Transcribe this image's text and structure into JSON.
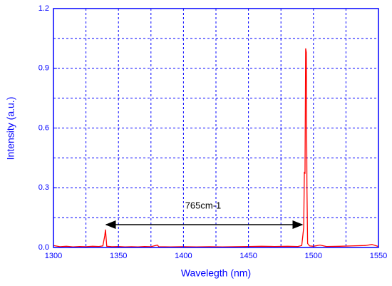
{
  "chart_data": {
    "type": "line",
    "xlabel": "Wavelegth (nm)",
    "ylabel": "Intensity (a.u.)",
    "annotation": "765cm-1",
    "xlim": [
      1300,
      1550
    ],
    "ylim": [
      0,
      1.2
    ],
    "xticks": [
      1300,
      1350,
      1400,
      1450,
      1500,
      1550
    ],
    "yticks": [
      {
        "value": 0,
        "label": "0.0"
      },
      0.3,
      0.6,
      0.9,
      1.2
    ],
    "xminorticks": [
      1325,
      1375,
      1425,
      1475,
      1525
    ],
    "yminorticks": [
      0.15,
      0.45,
      0.75,
      1.05
    ],
    "grid": true,
    "x": [
      1300,
      1305,
      1310,
      1315,
      1320,
      1325,
      1330,
      1335,
      1338,
      1339.5,
      1340,
      1340.5,
      1341,
      1345,
      1350,
      1355,
      1360,
      1365,
      1370,
      1375,
      1380,
      1381,
      1390,
      1400,
      1410,
      1420,
      1430,
      1440,
      1450,
      1460,
      1470,
      1480,
      1488,
      1491,
      1492.5,
      1493,
      1493.5,
      1494,
      1494.5,
      1495,
      1495.5,
      1497,
      1500,
      1505,
      1510,
      1520,
      1530,
      1540,
      1545,
      1550
    ],
    "series": [
      {
        "color": "#ff0000",
        "values": [
          0.01,
          0.004,
          0.006,
          0.003,
          0.005,
          0.004,
          0.006,
          0.005,
          0.008,
          0.06,
          0.09,
          0.05,
          0.006,
          0.004,
          0.005,
          0.003,
          0.004,
          0.003,
          0.005,
          0.004,
          0.012,
          0.004,
          0.003,
          0.004,
          0.003,
          0.004,
          0.003,
          0.004,
          0.005,
          0.006,
          0.005,
          0.006,
          0.005,
          0.01,
          0.1,
          0.38,
          0.37,
          1.0,
          0.98,
          0.3,
          0.02,
          0.008,
          0.006,
          0.012,
          0.005,
          0.006,
          0.008,
          0.01,
          0.015,
          0.005
        ]
      }
    ]
  }
}
